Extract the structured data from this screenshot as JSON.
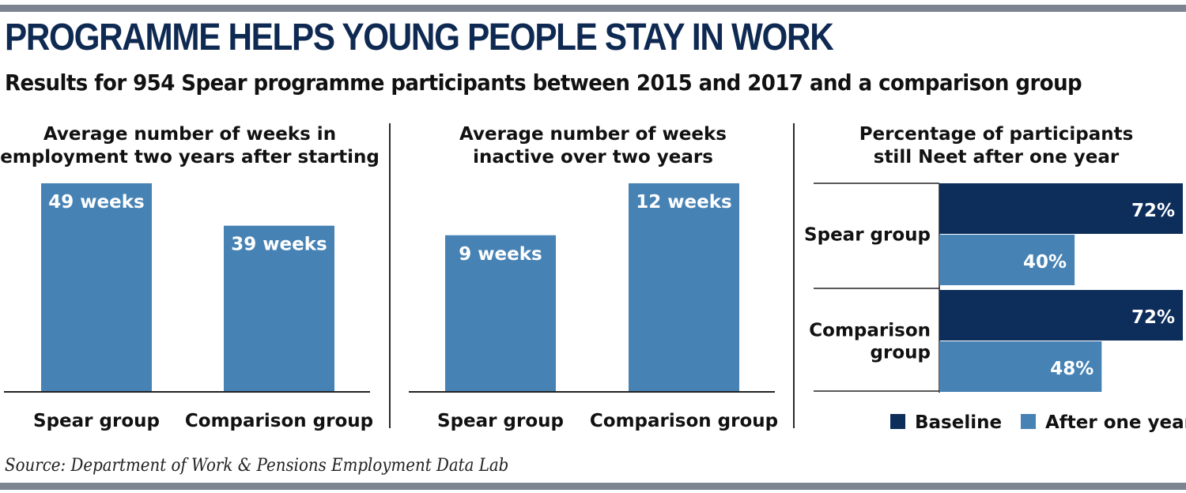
{
  "title": "PROGRAMME HELPS YOUNG PEOPLE STAY IN WORK",
  "subtitle": "Results for 954 Spear programme participants between 2015 and 2017 and a comparison group",
  "source": "Source: Department of Work & Pensions Employment Data Lab",
  "colors": {
    "baseline": "#0d2d5b",
    "after": "#4682b4",
    "title": "#0f2a52",
    "rule": "#7b8490"
  },
  "chart_data": [
    {
      "type": "bar",
      "title_lines": [
        "Average number of weeks in",
        "employment two years after starting"
      ],
      "categories": [
        "Spear group",
        "Comparison group"
      ],
      "values": [
        49,
        39
      ],
      "value_labels": [
        "49 weeks",
        "39 weeks"
      ],
      "ylim": [
        0,
        49
      ]
    },
    {
      "type": "bar",
      "title_lines": [
        "Average number of weeks",
        "inactive over two years"
      ],
      "categories": [
        "Spear group",
        "Comparison group"
      ],
      "values": [
        9,
        12
      ],
      "value_labels": [
        "9 weeks",
        "12 weeks"
      ],
      "ylim": [
        0,
        12
      ]
    },
    {
      "type": "bar",
      "orientation": "horizontal",
      "title_lines": [
        "Percentage of participants",
        "still Neet after one year"
      ],
      "categories": [
        [
          "Spear group"
        ],
        [
          "Comparison",
          "group"
        ]
      ],
      "series": [
        {
          "name": "Baseline",
          "values": [
            72,
            72
          ],
          "value_labels": [
            "72%",
            "72%"
          ]
        },
        {
          "name": "After one year",
          "values": [
            40,
            48
          ],
          "value_labels": [
            "40%",
            "48%"
          ]
        }
      ],
      "xlim": [
        0,
        72
      ],
      "legend": "bottom-right"
    }
  ]
}
